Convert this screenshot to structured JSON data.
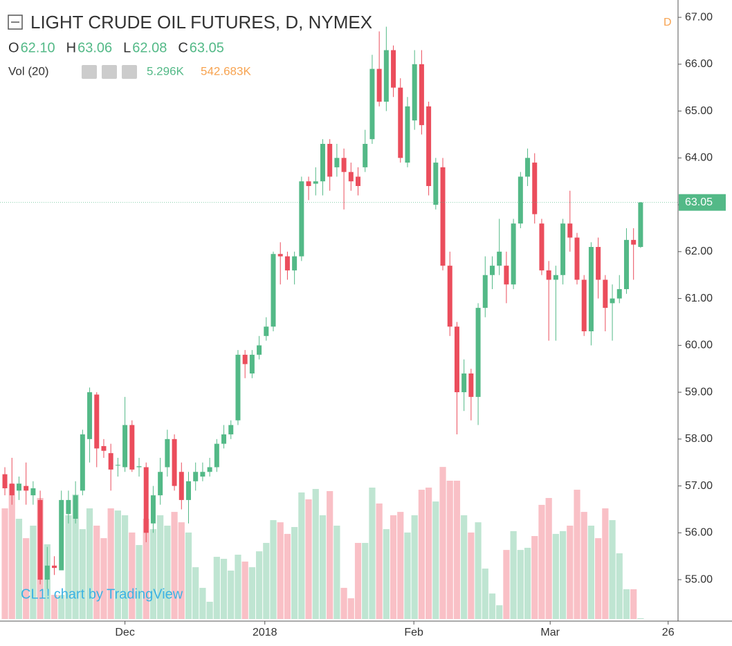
{
  "chart_data": {
    "type": "candlestick",
    "title": "LIGHT CRUDE OIL FUTURES, D, NYMEX",
    "interval_badge": "D",
    "ohlc": {
      "labels": [
        "O",
        "H",
        "L",
        "C"
      ],
      "values": [
        62.1,
        63.06,
        62.08,
        63.05
      ],
      "value_labels": [
        "62.10",
        "63.06",
        "62.08",
        "63.05"
      ]
    },
    "volume_legend": {
      "name": "Vol (20)",
      "values": [
        5.296,
        542.683
      ],
      "value_labels": [
        "5.296K",
        "542.683K"
      ]
    },
    "watermark": "CL1! chart by TradingView",
    "last_price": 63.05,
    "last_price_label": "63.05",
    "up_color": "#53b987",
    "down_color": "#eb4d5c",
    "volume_up_color": "#bfe5d2",
    "volume_down_color": "#f9c0c6",
    "x": [
      0,
      1,
      2,
      3,
      4,
      5,
      6,
      7,
      8,
      9,
      10,
      11,
      12,
      13,
      14,
      15,
      16,
      17,
      18,
      19,
      20,
      21,
      22,
      23,
      24,
      25,
      26,
      27,
      28,
      29,
      30,
      31,
      32,
      33,
      34,
      35,
      36,
      37,
      38,
      39,
      40,
      41,
      42,
      43,
      44,
      45,
      46,
      47,
      48,
      49,
      50,
      51,
      52,
      53,
      54,
      55,
      56,
      57,
      58,
      59,
      60,
      61,
      62,
      63,
      64,
      65,
      66,
      67,
      68,
      69,
      70,
      71,
      72,
      73,
      74,
      75,
      76,
      77,
      78,
      79,
      80,
      81,
      82,
      83,
      84,
      85,
      86,
      87,
      88,
      89,
      90
    ],
    "open": [
      57.25,
      57.05,
      56.9,
      57.0,
      56.8,
      56.7,
      55.0,
      55.3,
      55.2,
      56.4,
      56.3,
      56.9,
      58.0,
      58.95,
      57.85,
      57.7,
      57.45,
      57.4,
      58.3,
      57.4,
      57.4,
      56.2,
      56.8,
      57.4,
      58.0,
      57.3,
      56.7,
      57.1,
      57.2,
      57.3,
      57.4,
      57.9,
      58.1,
      58.4,
      59.8,
      59.4,
      59.8,
      60.2,
      60.4,
      61.95,
      61.9,
      61.6,
      61.9,
      63.5,
      63.45,
      63.5,
      64.3,
      63.8,
      64.0,
      63.7,
      63.6,
      63.8,
      64.4,
      65.9,
      65.2,
      66.3,
      65.5,
      63.9,
      64.8,
      66.0,
      65.1,
      63.0,
      63.8,
      61.7,
      60.4,
      59.0,
      59.4,
      58.9,
      60.8,
      61.5,
      61.7,
      61.7,
      61.3,
      62.6,
      63.6,
      63.9,
      62.6,
      61.6,
      61.4,
      61.5,
      62.6,
      62.3,
      61.4,
      60.3,
      62.1,
      61.4,
      60.9,
      61.0,
      61.2,
      62.25,
      62.1
    ],
    "high": [
      57.4,
      57.6,
      57.2,
      57.5,
      57.1,
      56.9,
      55.7,
      55.5,
      56.9,
      56.9,
      57.1,
      58.2,
      59.1,
      59.0,
      58.0,
      57.9,
      57.6,
      58.9,
      58.4,
      57.6,
      57.5,
      57.0,
      57.6,
      58.2,
      58.1,
      57.5,
      57.3,
      57.5,
      57.5,
      57.6,
      58.0,
      58.3,
      58.4,
      59.9,
      59.9,
      59.9,
      60.2,
      60.6,
      62.0,
      62.2,
      62.0,
      62.0,
      63.6,
      63.6,
      63.8,
      64.4,
      64.4,
      64.3,
      64.2,
      63.9,
      63.8,
      64.6,
      66.2,
      66.7,
      66.8,
      66.4,
      65.7,
      65.3,
      66.3,
      66.3,
      65.2,
      64.0,
      64.0,
      62.0,
      60.5,
      59.7,
      59.5,
      60.9,
      61.9,
      61.9,
      62.7,
      62.0,
      62.7,
      63.7,
      64.2,
      64.1,
      62.7,
      61.8,
      61.7,
      62.7,
      63.3,
      62.4,
      61.5,
      62.2,
      62.3,
      61.5,
      61.3,
      61.5,
      62.5,
      62.5,
      63.06
    ],
    "low": [
      56.8,
      56.6,
      56.7,
      56.6,
      56.6,
      54.9,
      54.8,
      55.1,
      55.2,
      56.2,
      56.2,
      56.8,
      57.5,
      57.4,
      57.6,
      56.9,
      57.2,
      57.3,
      57.3,
      57.2,
      55.8,
      56.0,
      56.6,
      57.2,
      56.9,
      56.5,
      56.2,
      56.9,
      57.1,
      57.2,
      57.3,
      57.8,
      58.0,
      58.3,
      59.3,
      59.3,
      59.7,
      60.1,
      60.3,
      61.3,
      61.4,
      61.3,
      61.8,
      63.1,
      63.2,
      63.2,
      63.3,
      63.6,
      62.9,
      63.3,
      63.2,
      63.7,
      64.3,
      65.1,
      65.0,
      65.3,
      63.9,
      63.8,
      64.6,
      64.5,
      63.2,
      62.9,
      61.6,
      60.2,
      58.1,
      58.6,
      58.4,
      58.3,
      60.6,
      61.2,
      61.5,
      60.9,
      61.2,
      62.5,
      63.4,
      62.6,
      61.5,
      60.1,
      60.1,
      61.3,
      62.0,
      61.3,
      60.2,
      60.0,
      61.0,
      60.3,
      60.1,
      60.9,
      61.1,
      61.4,
      62.08
    ],
    "close": [
      56.95,
      56.8,
      57.05,
      56.9,
      56.95,
      55.0,
      55.3,
      55.25,
      56.7,
      56.7,
      56.8,
      58.1,
      59.0,
      57.8,
      57.75,
      57.35,
      57.45,
      58.3,
      57.35,
      57.42,
      56.0,
      56.8,
      57.3,
      58.0,
      57.0,
      56.7,
      57.1,
      57.3,
      57.3,
      57.4,
      57.9,
      58.1,
      58.3,
      59.8,
      59.6,
      59.8,
      60.0,
      60.4,
      61.95,
      61.9,
      61.6,
      61.9,
      63.5,
      63.4,
      63.5,
      64.3,
      63.6,
      64.0,
      63.7,
      63.5,
      63.4,
      64.3,
      65.9,
      65.2,
      66.3,
      65.5,
      64.0,
      65.1,
      66.0,
      64.7,
      63.4,
      63.9,
      61.7,
      60.4,
      59.0,
      59.4,
      58.9,
      60.8,
      61.5,
      61.7,
      62.0,
      61.3,
      62.6,
      63.6,
      64.0,
      62.8,
      61.6,
      61.4,
      61.5,
      62.6,
      62.3,
      61.4,
      60.3,
      62.1,
      61.4,
      60.8,
      61.0,
      61.2,
      62.25,
      62.15,
      63.05
    ],
    "volume": [
      724,
      882,
      656,
      529,
      611,
      792,
      489,
      158,
      158,
      679,
      815,
      588,
      724,
      611,
      529,
      724,
      710,
      679,
      566,
      484,
      656,
      588,
      679,
      611,
      701,
      633,
      566,
      339,
      204,
      113,
      407,
      394,
      317,
      421,
      376,
      339,
      443,
      498,
      647,
      633,
      557,
      602,
      828,
      783,
      851,
      679,
      837,
      611,
      204,
      136,
      498,
      498,
      860,
      756,
      588,
      679,
      701,
      566,
      679,
      846,
      860,
      769,
      995,
      905,
      905,
      679,
      566,
      633,
      330,
      167,
      90,
      452,
      575,
      452,
      466,
      543,
      747,
      792,
      557,
      575,
      611,
      846,
      701,
      611,
      529,
      724,
      647,
      430,
      195,
      195,
      5.296
    ],
    "xlim": [
      -0.69,
      95.3
    ],
    "xticks": [
      {
        "value": 17,
        "label": "Dec"
      },
      {
        "value": 36.8,
        "label": "2018"
      },
      {
        "value": 57.9,
        "label": "Feb"
      },
      {
        "value": 77.2,
        "label": "Mar"
      },
      {
        "value": 93.9,
        "label": "26"
      }
    ],
    "ylim": [
      54.16,
      67.37
    ],
    "yticks": [
      {
        "value": 55,
        "label": "55.00"
      },
      {
        "value": 56,
        "label": "56.00"
      },
      {
        "value": 57,
        "label": "57.00"
      },
      {
        "value": 58,
        "label": "58.00"
      },
      {
        "value": 59,
        "label": "59.00"
      },
      {
        "value": 60,
        "label": "60.00"
      },
      {
        "value": 61,
        "label": "61.00"
      },
      {
        "value": 62,
        "label": "62.00"
      },
      {
        "value": 63,
        "label": "63.00"
      },
      {
        "value": 64,
        "label": "64.00"
      },
      {
        "value": 65,
        "label": "65.00"
      },
      {
        "value": 66,
        "label": "66.00"
      },
      {
        "value": 67,
        "label": "67.00"
      }
    ],
    "volume_ylim": [
      0,
      1335
    ]
  }
}
